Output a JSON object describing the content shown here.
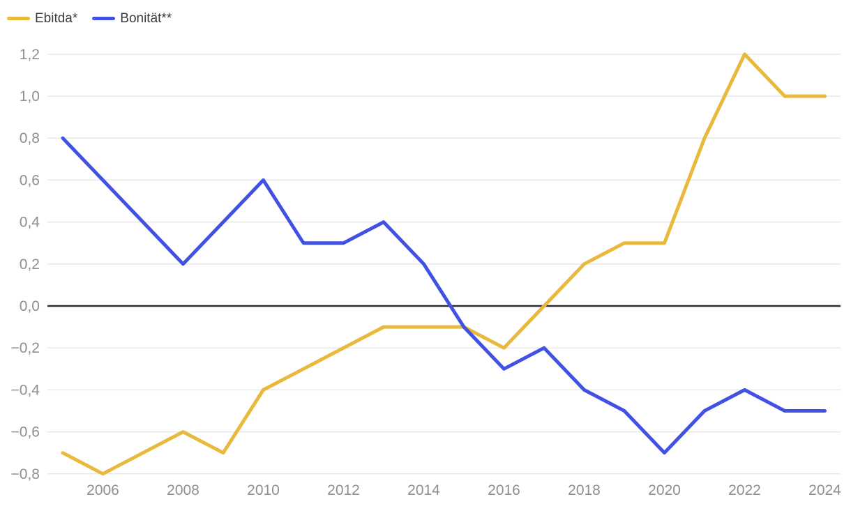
{
  "legend": {
    "items": [
      {
        "id": "ebitda",
        "label": "Ebitda*",
        "color": "#E8B93C"
      },
      {
        "id": "bonitaet",
        "label": "Bonität**",
        "color": "#4152E2"
      }
    ]
  },
  "chart_data": {
    "type": "line",
    "title": "",
    "xlabel": "",
    "ylabel": "",
    "x": [
      2005,
      2006,
      2007,
      2008,
      2009,
      2010,
      2011,
      2012,
      2013,
      2014,
      2015,
      2016,
      2017,
      2018,
      2019,
      2020,
      2021,
      2022,
      2023,
      2024
    ],
    "series": [
      {
        "id": "ebitda",
        "name": "Ebitda*",
        "color": "#E8B93C",
        "values": [
          -0.7,
          -0.8,
          -0.7,
          -0.6,
          -0.7,
          -0.4,
          -0.3,
          -0.2,
          -0.1,
          -0.1,
          -0.1,
          -0.2,
          0.0,
          0.2,
          0.3,
          0.3,
          0.8,
          1.2,
          1.0,
          1.0
        ]
      },
      {
        "id": "bonitaet",
        "name": "Bonität**",
        "color": "#4152E2",
        "values": [
          0.8,
          0.6,
          0.4,
          0.2,
          0.4,
          0.6,
          0.3,
          0.3,
          0.4,
          0.2,
          -0.1,
          -0.3,
          -0.2,
          -0.4,
          -0.5,
          -0.7,
          -0.5,
          -0.4,
          -0.5,
          -0.5
        ]
      }
    ],
    "xlim": [
      2005,
      2024
    ],
    "ylim": [
      -0.8,
      1.2
    ],
    "yticks": [
      {
        "value": 1.2,
        "label": "1,2"
      },
      {
        "value": 1.0,
        "label": "1,0"
      },
      {
        "value": 0.8,
        "label": "0,8"
      },
      {
        "value": 0.6,
        "label": "0,6"
      },
      {
        "value": 0.4,
        "label": "0,4"
      },
      {
        "value": 0.2,
        "label": "0,2"
      },
      {
        "value": 0.0,
        "label": "0,0"
      },
      {
        "value": -0.2,
        "label": "−0,2"
      },
      {
        "value": -0.4,
        "label": "−0,4"
      },
      {
        "value": -0.6,
        "label": "−0,6"
      },
      {
        "value": -0.8,
        "label": "−0,8"
      }
    ],
    "xticks": [
      {
        "value": 2006,
        "label": "2006"
      },
      {
        "value": 2008,
        "label": "2008"
      },
      {
        "value": 2010,
        "label": "2010"
      },
      {
        "value": 2012,
        "label": "2012"
      },
      {
        "value": 2014,
        "label": "2014"
      },
      {
        "value": 2016,
        "label": "2016"
      },
      {
        "value": 2018,
        "label": "2018"
      },
      {
        "value": 2020,
        "label": "2020"
      },
      {
        "value": 2022,
        "label": "2022"
      },
      {
        "value": 2024,
        "label": "2024"
      },
      {
        "value": 2024,
        "label": "2024"
      }
    ],
    "grid": true,
    "zero_line": true,
    "legend_position": "top-left",
    "decimal_separator": ","
  },
  "colors": {
    "grid": "#E9E9E9",
    "zero_line": "#2C2C2C",
    "tick_label": "#8F8F8F",
    "legend_text": "#3A3A3A",
    "background": "#FFFFFF"
  }
}
